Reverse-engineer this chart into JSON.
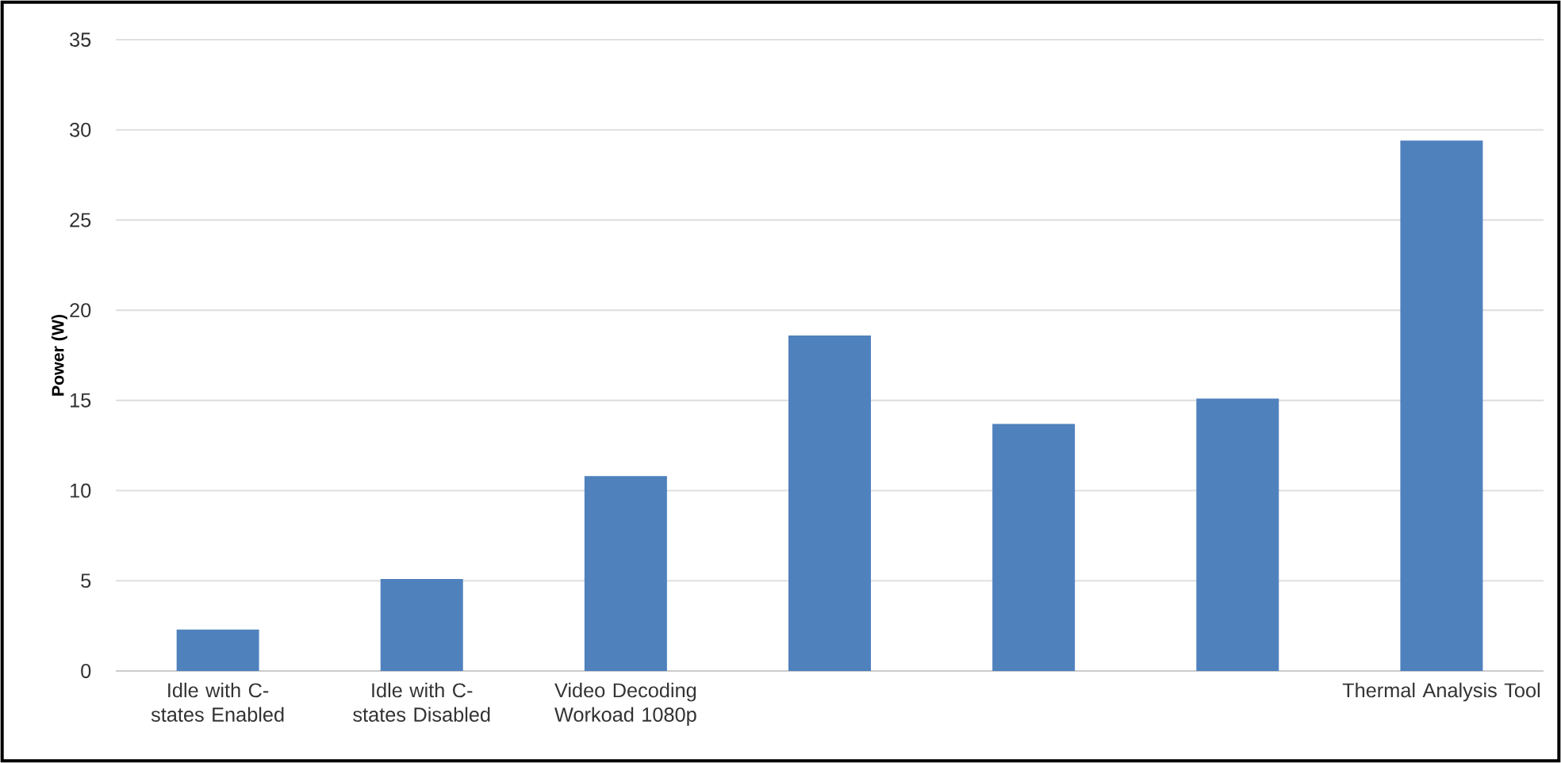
{
  "chart_data": {
    "type": "bar",
    "ylabel": "Power (W)",
    "categories": [
      "Idle with C-states Enabled",
      "Idle with C-states Disabled",
      "Video Decoding Workoad 1080p",
      null,
      null,
      null,
      "Thermal Analysis Tool"
    ],
    "values": [
      2.3,
      5.1,
      10.8,
      18.6,
      13.7,
      15.1,
      29.4
    ],
    "color": "#4f81bd",
    "ylim": [
      0,
      35
    ],
    "yticks": [
      0,
      5,
      10,
      15,
      20,
      25,
      30,
      35
    ],
    "grid": "y"
  }
}
